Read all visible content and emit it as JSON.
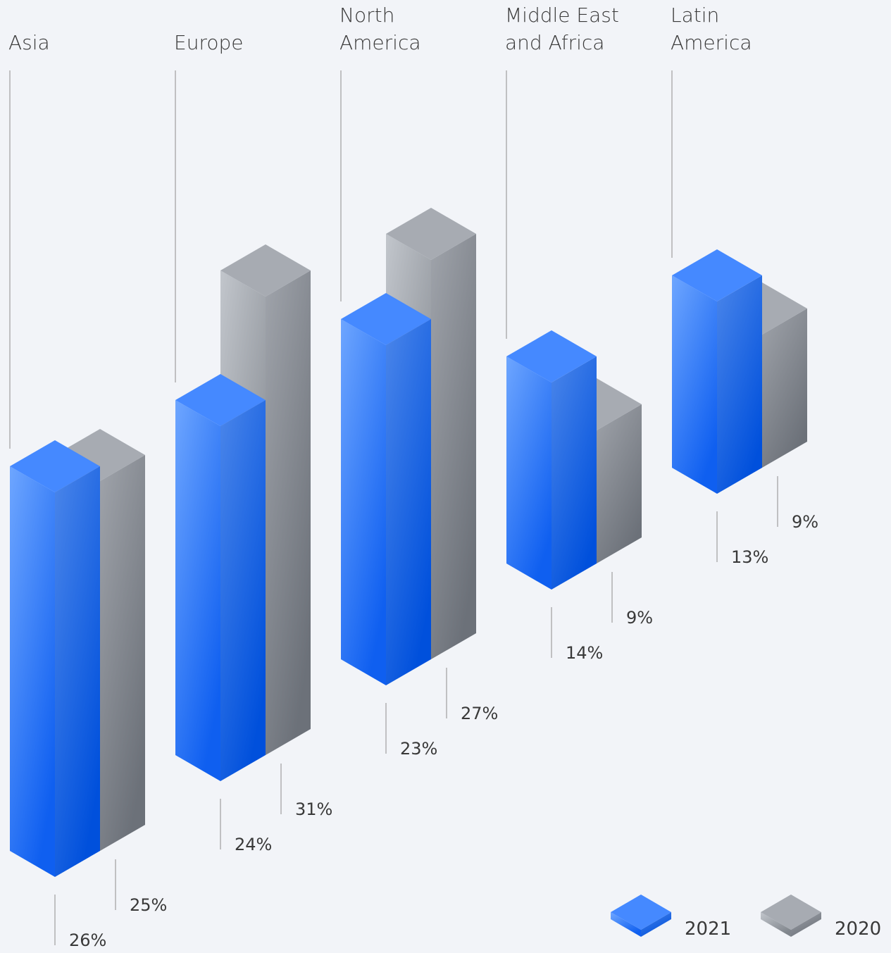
{
  "chart_data": {
    "type": "isometric-bar",
    "categories": [
      "Asia",
      "Europe",
      "North America",
      "Middle East and Africa",
      "Latin America"
    ],
    "series": [
      {
        "name": "2021",
        "color": "#4589ff",
        "values": [
          26,
          24,
          23,
          14,
          13
        ],
        "value_labels": [
          "26%",
          "24%",
          "23%",
          "14%",
          "13%"
        ]
      },
      {
        "name": "2020",
        "color": "#a7abb2",
        "values": [
          25,
          31,
          27,
          9,
          9
        ],
        "value_labels": [
          "25%",
          "31%",
          "27%",
          "9%",
          "9%"
        ]
      }
    ],
    "legend": "bottom-right"
  }
}
